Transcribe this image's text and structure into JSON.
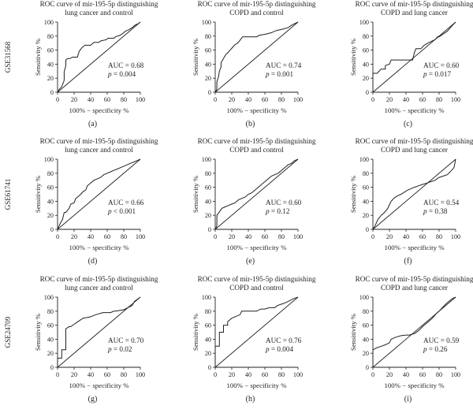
{
  "figure": {
    "row_labels": [
      "GSE31568",
      "GSE61741",
      "GSE24709"
    ],
    "axis_xlabel": "100% − specificity %",
    "axis_ylabel": "Sensitivity %"
  },
  "chart_data": [
    {
      "type": "line",
      "panel": "(a)",
      "row": 0,
      "col": 0,
      "title_lines": [
        "ROC curve of mir-195-5p distinguishing",
        "lung cancer and control"
      ],
      "auc": "AUC = 0.68",
      "p": "= 0.004",
      "xlim": [
        0,
        100
      ],
      "ylim": [
        0,
        100
      ],
      "xticks": [
        0,
        20,
        40,
        60,
        80,
        100
      ],
      "yticks": [
        0,
        20,
        40,
        60,
        80,
        100
      ],
      "diagonal": true,
      "x": [
        0,
        2,
        5,
        8,
        8,
        10,
        10,
        12,
        15,
        18,
        24,
        26,
        29,
        31,
        33,
        40,
        44,
        50,
        52,
        59,
        61,
        68,
        70,
        75,
        78,
        82,
        86,
        90,
        94,
        98,
        100
      ],
      "y": [
        0,
        4,
        8,
        17,
        29,
        38,
        46,
        48,
        48,
        50,
        50,
        58,
        63,
        65,
        67,
        67,
        71,
        71,
        73,
        75,
        77,
        77,
        79,
        81,
        83,
        87,
        89,
        92,
        96,
        98,
        100
      ]
    },
    {
      "type": "line",
      "panel": "(b)",
      "row": 0,
      "col": 1,
      "title_lines": [
        "ROC curve of mir-195-5p distinguishing",
        "COPD and control"
      ],
      "auc": "AUC = 0.74",
      "p": "= 0.001",
      "xlim": [
        0,
        100
      ],
      "ylim": [
        0,
        100
      ],
      "xticks": [
        0,
        20,
        40,
        60,
        80,
        100
      ],
      "yticks": [
        0,
        20,
        40,
        60,
        80,
        100
      ],
      "diagonal": true,
      "x": [
        0,
        2,
        2,
        4,
        5,
        7,
        7,
        10,
        13,
        15,
        18,
        21,
        24,
        27,
        30,
        33,
        50,
        53,
        62,
        68,
        74,
        82,
        88,
        93,
        100
      ],
      "y": [
        0,
        4,
        15,
        22,
        30,
        36,
        42,
        48,
        54,
        56,
        60,
        64,
        68,
        70,
        74,
        79,
        79,
        81,
        83,
        85,
        88,
        90,
        92,
        96,
        100
      ]
    },
    {
      "type": "line",
      "panel": "(c)",
      "row": 0,
      "col": 2,
      "title_lines": [
        "ROC curve of mir-195-5p distinguishing",
        "COPD and lung cancer"
      ],
      "auc": "AUC = 0.60",
      "p": "= 0.017",
      "xlim": [
        0,
        100
      ],
      "ylim": [
        0,
        100
      ],
      "xticks": [
        0,
        20,
        40,
        60,
        80,
        100
      ],
      "yticks": [
        0,
        20,
        40,
        60,
        80,
        100
      ],
      "diagonal": true,
      "x": [
        0,
        0,
        5,
        10,
        15,
        15,
        20,
        22,
        30,
        35,
        35,
        48,
        50,
        52,
        58,
        62,
        68,
        75,
        78,
        80,
        85,
        90,
        95,
        100
      ],
      "y": [
        0,
        27,
        27,
        33,
        33,
        38,
        40,
        46,
        46,
        46,
        46,
        46,
        56,
        62,
        62,
        67,
        71,
        75,
        79,
        79,
        83,
        87,
        94,
        100
      ]
    },
    {
      "type": "line",
      "panel": "(d)",
      "row": 1,
      "col": 0,
      "title_lines": [
        "ROC curve of mir-195-5p distinguishing",
        "lung cancer and control"
      ],
      "auc": "AUC = 0.66",
      "p": "< 0.001",
      "xlim": [
        0,
        100
      ],
      "ylim": [
        0,
        100
      ],
      "xticks": [
        0,
        20,
        40,
        60,
        80,
        100
      ],
      "yticks": [
        0,
        20,
        40,
        60,
        80,
        100
      ],
      "diagonal": true,
      "x": [
        0,
        3,
        6,
        8,
        10,
        14,
        16,
        20,
        22,
        24,
        28,
        31,
        34,
        36,
        40,
        44,
        48,
        52,
        56,
        60,
        64,
        68,
        72,
        76,
        80,
        84,
        88,
        92,
        96,
        100
      ],
      "y": [
        0,
        8,
        14,
        24,
        24,
        30,
        36,
        38,
        44,
        46,
        50,
        54,
        56,
        62,
        66,
        70,
        72,
        74,
        78,
        80,
        82,
        84,
        86,
        88,
        90,
        92,
        94,
        96,
        98,
        100
      ]
    },
    {
      "type": "line",
      "panel": "(e)",
      "row": 1,
      "col": 1,
      "title_lines": [
        "ROC curve of mir-195-5p distinguishing",
        "COPD and control"
      ],
      "auc": "AUC = 0.60",
      "p": "= 0.12",
      "xlim": [
        0,
        100
      ],
      "ylim": [
        0,
        100
      ],
      "xticks": [
        0,
        20,
        40,
        60,
        80,
        100
      ],
      "yticks": [
        0,
        20,
        40,
        60,
        80,
        100
      ],
      "diagonal": true,
      "x": [
        0,
        2,
        2,
        5,
        8,
        12,
        16,
        20,
        24,
        28,
        32,
        36,
        40,
        44,
        48,
        52,
        56,
        60,
        64,
        68,
        72,
        76,
        80,
        84,
        88,
        92,
        96,
        100
      ],
      "y": [
        0,
        5,
        20,
        25,
        30,
        32,
        34,
        36,
        38,
        42,
        44,
        46,
        50,
        52,
        56,
        60,
        64,
        68,
        72,
        76,
        78,
        80,
        84,
        88,
        92,
        94,
        98,
        100
      ]
    },
    {
      "type": "line",
      "panel": "(f)",
      "row": 1,
      "col": 2,
      "title_lines": [
        "ROC curve of mir-195-5p distinguishing",
        "COPD and lung cancer"
      ],
      "auc": "AUC = 0.54",
      "p": "= 0.38",
      "xlim": [
        0,
        100
      ],
      "ylim": [
        0,
        100
      ],
      "xticks": [
        0,
        20,
        40,
        60,
        80,
        100
      ],
      "yticks": [
        0,
        20,
        40,
        60,
        80,
        100
      ],
      "diagonal": true,
      "x": [
        0,
        3,
        6,
        10,
        14,
        18,
        22,
        26,
        30,
        34,
        38,
        42,
        46,
        50,
        55,
        60,
        65,
        70,
        75,
        80,
        85,
        90,
        95,
        98,
        100
      ],
      "y": [
        0,
        6,
        14,
        20,
        24,
        30,
        40,
        45,
        48,
        50,
        53,
        56,
        58,
        60,
        62,
        64,
        66,
        68,
        70,
        74,
        76,
        78,
        84,
        88,
        100
      ]
    },
    {
      "type": "line",
      "panel": "(g)",
      "row": 2,
      "col": 0,
      "title_lines": [
        "ROC curve of mir-195-5p distinguishing",
        "lung cancer and control"
      ],
      "auc": "AUC = 0.70",
      "p": "= 0.02",
      "xlim": [
        0,
        100
      ],
      "ylim": [
        0,
        100
      ],
      "xticks": [
        0,
        20,
        40,
        60,
        80,
        100
      ],
      "yticks": [
        0,
        20,
        40,
        60,
        80,
        100
      ],
      "diagonal": true,
      "x": [
        0,
        0,
        5,
        5,
        10,
        10,
        14,
        16,
        22,
        27,
        31,
        36,
        40,
        46,
        55,
        64,
        68,
        70,
        80,
        90,
        93,
        100
      ],
      "y": [
        0,
        13,
        13,
        25,
        25,
        55,
        58,
        58,
        63,
        67,
        70,
        71,
        72,
        75,
        78,
        78,
        80,
        80,
        82,
        88,
        94,
        100
      ]
    },
    {
      "type": "line",
      "panel": "(h)",
      "row": 2,
      "col": 1,
      "title_lines": [
        "ROC curve of mir-195-5p distinguishing",
        "COPD and control"
      ],
      "auc": "AUC = 0.76",
      "p": "= 0.004",
      "xlim": [
        0,
        100
      ],
      "ylim": [
        0,
        100
      ],
      "xticks": [
        0,
        20,
        40,
        60,
        80,
        100
      ],
      "yticks": [
        0,
        20,
        40,
        60,
        80,
        100
      ],
      "diagonal": true,
      "x": [
        0,
        0,
        5,
        5,
        10,
        10,
        15,
        15,
        20,
        30,
        32,
        50,
        55,
        60,
        65,
        72,
        75,
        80,
        85,
        90,
        95,
        100
      ],
      "y": [
        0,
        30,
        30,
        50,
        50,
        60,
        60,
        65,
        70,
        75,
        80,
        80,
        83,
        83,
        85,
        85,
        88,
        90,
        92,
        95,
        98,
        100
      ]
    },
    {
      "type": "line",
      "panel": "(i)",
      "row": 2,
      "col": 2,
      "title_lines": [
        "ROC curve of mir-195-5p distinguishing",
        "COPD and lung cancer"
      ],
      "auc": "AUC = 0.59",
      "p": "= 0.26",
      "xlim": [
        0,
        100
      ],
      "ylim": [
        0,
        100
      ],
      "xticks": [
        0,
        20,
        40,
        60,
        80,
        100
      ],
      "yticks": [
        0,
        20,
        40,
        60,
        80,
        100
      ],
      "diagonal": true,
      "x": [
        0,
        0,
        5,
        10,
        15,
        20,
        22,
        28,
        34,
        40,
        44,
        50,
        55,
        60,
        64,
        68,
        72,
        76,
        80,
        84,
        88,
        92,
        96,
        100
      ],
      "y": [
        0,
        25,
        28,
        30,
        32,
        35,
        40,
        43,
        45,
        46,
        46,
        48,
        52,
        58,
        62,
        66,
        70,
        76,
        80,
        85,
        90,
        94,
        98,
        100
      ]
    }
  ]
}
